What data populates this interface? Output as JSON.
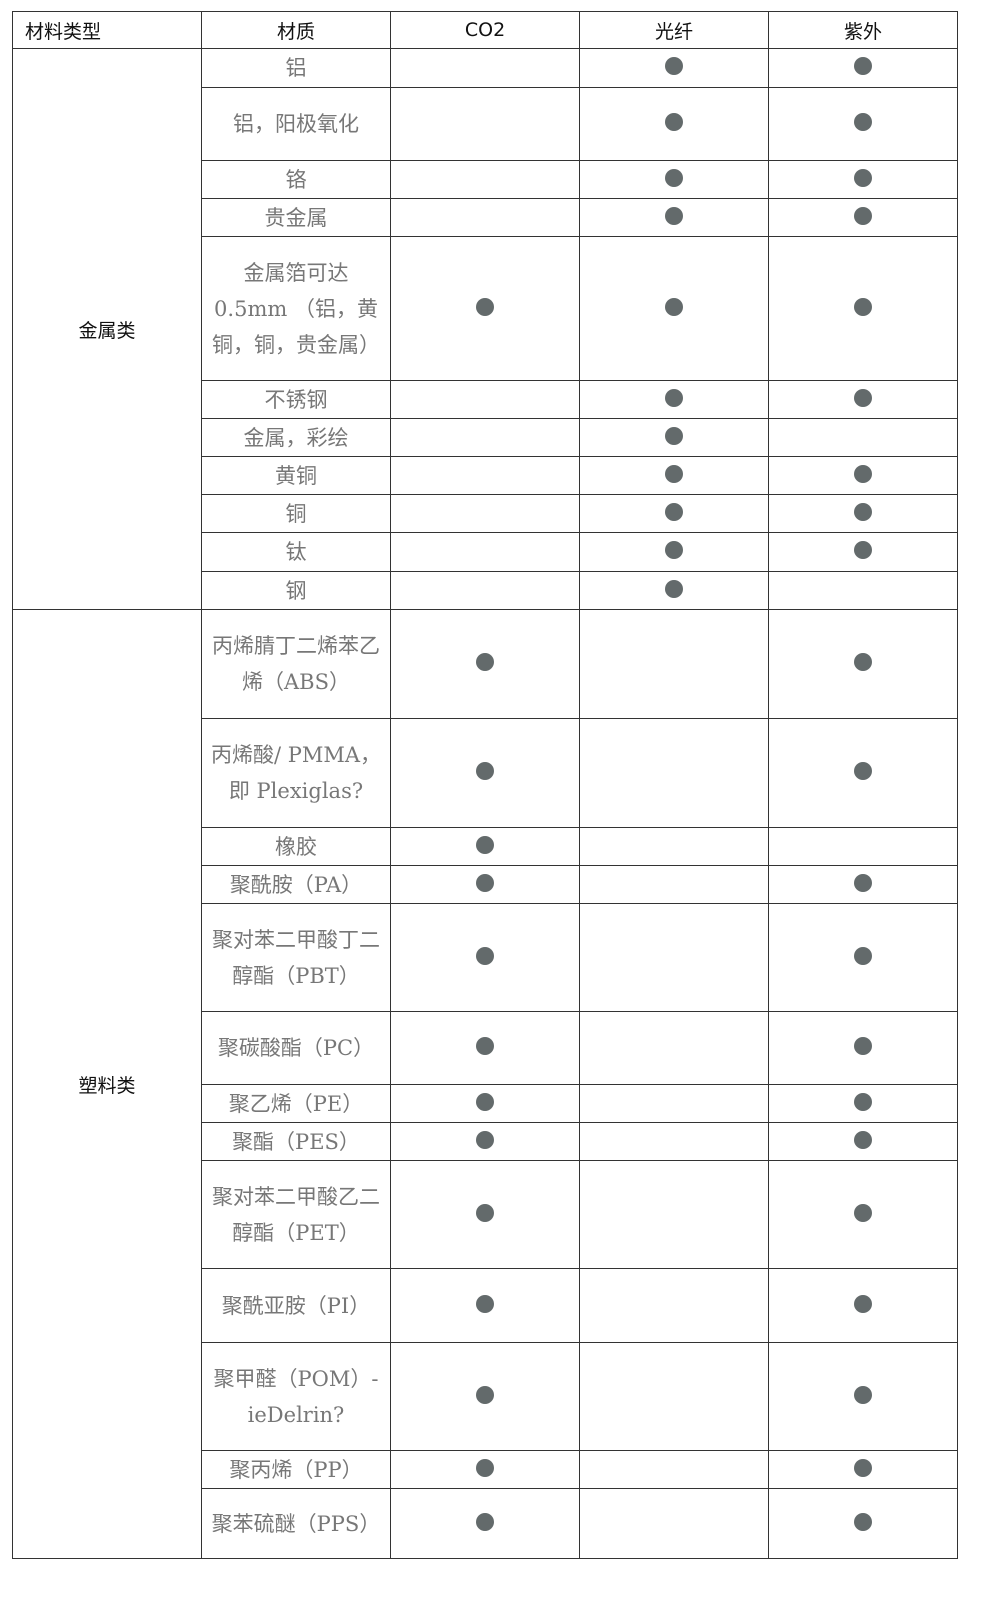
{
  "header": [
    "材料类型",
    "材质",
    "CO2",
    "光纤",
    "紫外"
  ],
  "colors": {
    "dot": "#636a6b",
    "border": "#333333",
    "material_text": "#777777"
  },
  "groups": [
    {
      "category": "金属类",
      "rows": [
        {
          "material": "铝",
          "marks": [
            false,
            true,
            true
          ]
        },
        {
          "material": "铝，阳极氧化",
          "marks": [
            false,
            true,
            true
          ]
        },
        {
          "material": "铬",
          "marks": [
            false,
            true,
            true
          ]
        },
        {
          "material": "贵金属",
          "marks": [
            false,
            true,
            true
          ]
        },
        {
          "material": "金属箔可达 0.5mm （铝，黄铜，铜，贵金属）",
          "marks": [
            true,
            true,
            true
          ]
        },
        {
          "material": "不锈钢",
          "marks": [
            false,
            true,
            true
          ]
        },
        {
          "material": "金属，彩绘",
          "marks": [
            false,
            true,
            false
          ]
        },
        {
          "material": "黄铜",
          "marks": [
            false,
            true,
            true
          ]
        },
        {
          "material": "铜",
          "marks": [
            false,
            true,
            true
          ]
        },
        {
          "material": "钛",
          "marks": [
            false,
            true,
            true
          ]
        },
        {
          "material": "钢",
          "marks": [
            false,
            true,
            false
          ]
        }
      ]
    },
    {
      "category": "塑料类",
      "rows": [
        {
          "material": "丙烯腈丁二烯苯乙烯（ABS）",
          "marks": [
            true,
            false,
            true
          ]
        },
        {
          "material": "丙烯酸/ PMMA，即 Plexiglas?",
          "marks": [
            true,
            false,
            true
          ]
        },
        {
          "material": "橡胶",
          "marks": [
            true,
            false,
            false
          ]
        },
        {
          "material": "聚酰胺（PA）",
          "marks": [
            true,
            false,
            true
          ]
        },
        {
          "material": "聚对苯二甲酸丁二醇酯（PBT）",
          "marks": [
            true,
            false,
            true
          ]
        },
        {
          "material": "聚碳酸酯（PC）",
          "marks": [
            true,
            false,
            true
          ]
        },
        {
          "material": "聚乙烯（PE）",
          "marks": [
            true,
            false,
            true
          ]
        },
        {
          "material": "聚酯（PES）",
          "marks": [
            true,
            false,
            true
          ]
        },
        {
          "material": "聚对苯二甲酸乙二醇酯（PET）",
          "marks": [
            true,
            false,
            true
          ]
        },
        {
          "material": "聚酰亚胺（PI）",
          "marks": [
            true,
            false,
            true
          ]
        },
        {
          "material": "聚甲醛（POM）-ieDelrin?",
          "marks": [
            true,
            false,
            true
          ]
        },
        {
          "material": "聚丙烯（PP）",
          "marks": [
            true,
            false,
            true
          ]
        },
        {
          "material": "聚苯硫醚（PPS）",
          "marks": [
            true,
            false,
            true
          ]
        }
      ]
    }
  ]
}
